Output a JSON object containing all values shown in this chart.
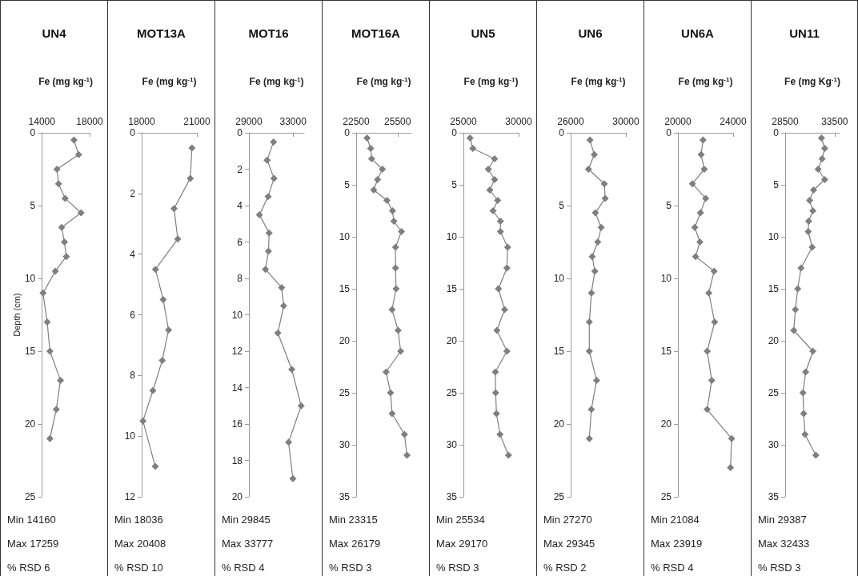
{
  "chart_data": [
    {
      "type": "line",
      "title": "UN4",
      "xlabel": "Fe (mg kg$^{-1}$)",
      "ylabel": "Depth (cm)",
      "color": "#7f7f7f",
      "marker": "diamond",
      "xlim": [
        14000,
        18000
      ],
      "xticks": [
        14000,
        18000
      ],
      "ylim": [
        25,
        0
      ],
      "yticks": [
        0,
        5,
        10,
        15,
        20,
        25
      ],
      "x": [
        16690,
        17080,
        15270,
        15400,
        15950,
        17280,
        15660,
        15890,
        16050,
        15130,
        14100,
        14450,
        14680,
        15560,
        15210,
        14680
      ],
      "values": [
        0.5,
        1.5,
        2.5,
        3.5,
        4.5,
        5.5,
        6.5,
        7.5,
        8.5,
        9.5,
        11,
        13,
        15,
        17,
        19,
        21
      ],
      "annotations": [
        "Min 14160",
        "Max 17259",
        "% RSD 6"
      ]
    },
    {
      "type": "line",
      "title": "MOT13A",
      "xlabel": "Fe (mg kg$^{-1}$)",
      "color": "#7f7f7f",
      "marker": "diamond",
      "xlim": [
        18000,
        21000
      ],
      "xticks": [
        18000,
        21000
      ],
      "ylim": [
        12,
        0
      ],
      "yticks": [
        0,
        2,
        4,
        6,
        8,
        10,
        12
      ],
      "x": [
        20730,
        20640,
        19760,
        19960,
        18750,
        19170,
        19460,
        19120,
        18610,
        18070,
        18740
      ],
      "values": [
        0.5,
        1.5,
        2.5,
        3.5,
        4.5,
        5.5,
        6.5,
        7.5,
        8.5,
        9.5,
        11
      ],
      "annotations": [
        "Min 18036",
        "Max 20408",
        "% RSD 10"
      ]
    },
    {
      "type": "line",
      "title": "MOT16",
      "xlabel": "Fe (mg kg$^{-1}$)",
      "color": "#7f7f7f",
      "marker": "diamond",
      "xlim": [
        29000,
        34000
      ],
      "xticks": [
        29000,
        33000
      ],
      "ylim": [
        20,
        0
      ],
      "yticks": [
        0,
        2,
        4,
        6,
        8,
        10,
        12,
        14,
        16,
        18,
        20
      ],
      "x": [
        31230,
        30650,
        31270,
        30740,
        29950,
        30830,
        30770,
        30500,
        31960,
        32150,
        31620,
        32880,
        33730,
        32590,
        32980
      ],
      "values": [
        0.5,
        1.5,
        2.5,
        3.5,
        4.5,
        5.5,
        6.5,
        7.5,
        8.5,
        9.5,
        11,
        13,
        15,
        17,
        19
      ],
      "annotations": [
        "Min 29845",
        "Max 33777",
        "% RSD 4"
      ]
    },
    {
      "type": "line",
      "title": "MOT16A",
      "xlabel": "Fe (mg kg$^{-1}$)",
      "color": "#7f7f7f",
      "marker": "diamond",
      "xlim": [
        22500,
        26500
      ],
      "xticks": [
        22500,
        25500
      ],
      "ylim": [
        35,
        0
      ],
      "yticks": [
        0,
        5,
        10,
        15,
        20,
        25,
        30,
        35
      ],
      "x": [
        23290,
        23550,
        23620,
        24400,
        24050,
        23770,
        24730,
        25130,
        25230,
        25780,
        25350,
        25350,
        25390,
        25100,
        25540,
        25720,
        24670,
        24990,
        25100,
        26000,
        26180
      ],
      "values": [
        0.5,
        1.5,
        2.5,
        3.5,
        4.5,
        5.5,
        6.5,
        7.5,
        8.5,
        9.5,
        11,
        13,
        15,
        17,
        19,
        21,
        23,
        25,
        27,
        29,
        31
      ],
      "annotations": [
        "Min 23315",
        "Max 26179",
        "% RSD 3"
      ]
    },
    {
      "type": "line",
      "title": "UN5",
      "xlabel": "Fe (mg kg$^{-1}$)",
      "color": "#7f7f7f",
      "marker": "diamond",
      "xlim": [
        25000,
        30000
      ],
      "xticks": [
        25000,
        30000
      ],
      "ylim": [
        35,
        0
      ],
      "yticks": [
        0,
        5,
        10,
        15,
        20,
        25,
        30,
        35
      ],
      "x": [
        25600,
        25850,
        27820,
        27250,
        27820,
        27390,
        28100,
        27680,
        28350,
        28350,
        29010,
        28940,
        28170,
        28730,
        28030,
        28940,
        27890,
        27920,
        27990,
        28310,
        29080
      ],
      "values": [
        0.5,
        1.5,
        2.5,
        3.5,
        4.5,
        5.5,
        6.5,
        7.5,
        8.5,
        9.5,
        11,
        13,
        15,
        17,
        19,
        21,
        23,
        25,
        27,
        29,
        31
      ],
      "annotations": [
        "Min 25534",
        "Max 29170",
        "% RSD 3"
      ]
    },
    {
      "type": "line",
      "title": "UN6",
      "xlabel": "Fe (mg kg$^{-1}$)",
      "color": "#7f7f7f",
      "marker": "diamond",
      "xlim": [
        26000,
        30000
      ],
      "xticks": [
        26000,
        30000
      ],
      "ylim": [
        25,
        0
      ],
      "yticks": [
        0,
        5,
        10,
        15,
        20,
        25
      ],
      "x": [
        27400,
        27710,
        27290,
        28440,
        28500,
        27790,
        28210,
        27960,
        27560,
        27750,
        27500,
        27350,
        27350,
        27880,
        27500,
        27350
      ],
      "values": [
        0.5,
        1.5,
        2.5,
        3.5,
        4.5,
        5.5,
        6.5,
        7.5,
        8.5,
        9.5,
        11,
        13,
        15,
        17,
        19,
        21
      ],
      "annotations": [
        "Min 27270",
        "Max 29345",
        "% RSD 2"
      ]
    },
    {
      "type": "line",
      "title": "UN6A",
      "xlabel": "Fe (mg kg$^{-1}$)",
      "color": "#7f7f7f",
      "marker": "diamond",
      "xlim": [
        20000,
        24000
      ],
      "xticks": [
        20000,
        24000
      ],
      "ylim": [
        25,
        0
      ],
      "yticks": [
        0,
        5,
        10,
        15,
        20,
        25
      ],
      "x": [
        21820,
        21680,
        21910,
        21050,
        22010,
        21630,
        21220,
        21590,
        21280,
        22620,
        22240,
        22660,
        22120,
        22450,
        22120,
        23890,
        23810
      ],
      "values": [
        0.5,
        1.5,
        2.5,
        3.5,
        4.5,
        5.5,
        6.5,
        7.5,
        8.5,
        9.5,
        11,
        13,
        15,
        17,
        19,
        21,
        23
      ],
      "annotations": [
        "Min 21084",
        "Max 23919",
        "% RSD 4"
      ]
    },
    {
      "type": "line",
      "title": "UN11",
      "xlabel": "Fe (mg Kg$^{-1}$)",
      "color": "#7f7f7f",
      "marker": "diamond",
      "xlim": [
        28500,
        34000
      ],
      "xticks": [
        28500,
        33500
      ],
      "ylim": [
        35,
        0
      ],
      "yticks": [
        0,
        5,
        10,
        15,
        20,
        25,
        30,
        35
      ],
      "x": [
        32170,
        32500,
        32230,
        31830,
        32500,
        31370,
        30970,
        31300,
        30870,
        30830,
        31230,
        30100,
        29770,
        29530,
        29370,
        31300,
        30570,
        30300,
        30370,
        30500,
        31600
      ],
      "values": [
        0.5,
        1.5,
        2.5,
        3.5,
        4.5,
        5.5,
        6.5,
        7.5,
        8.5,
        9.5,
        11,
        13,
        15,
        17,
        19,
        21,
        23,
        25,
        27,
        29,
        31
      ],
      "annotations": [
        "Min 29387",
        "Max 32433",
        "% RSD 3"
      ]
    }
  ]
}
